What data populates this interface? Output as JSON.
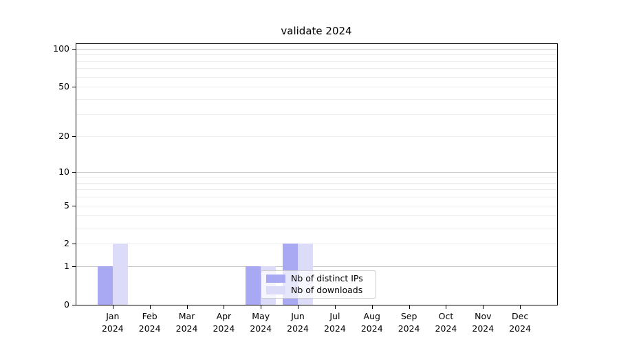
{
  "chart_data": {
    "type": "bar",
    "title": "validate 2024",
    "categories": [
      "Jan",
      "Feb",
      "Mar",
      "Apr",
      "May",
      "Jun",
      "Jul",
      "Aug",
      "Sep",
      "Oct",
      "Nov",
      "Dec"
    ],
    "x_sublabel": "2024",
    "series": [
      {
        "name": "Nb of distinct IPs",
        "key": "distinct-ips",
        "color": "#a9a9f3",
        "values": [
          1,
          0,
          0,
          0,
          1,
          2,
          0,
          0,
          0,
          0,
          0,
          0
        ]
      },
      {
        "name": "Nb of downloads",
        "key": "downloads",
        "color": "#dcdcf8",
        "values": [
          2,
          0,
          0,
          0,
          1,
          2,
          0,
          0,
          0,
          0,
          0,
          0
        ]
      }
    ],
    "xlabel": "",
    "ylabel": "",
    "ylim": [
      0,
      100
    ],
    "yscale": "log1p",
    "yticks": [
      0,
      1,
      2,
      5,
      10,
      20,
      50,
      100
    ],
    "major_gridlines": [
      1,
      10,
      100
    ],
    "minor_gridlines": [
      2,
      3,
      4,
      5,
      6,
      7,
      8,
      9,
      20,
      30,
      40,
      50,
      60,
      70,
      80,
      90
    ],
    "grid": "on",
    "legend": {
      "position": "inside-lower-center",
      "entries": [
        "Nb of distinct IPs",
        "Nb of downloads"
      ]
    }
  },
  "colors": {
    "background": "#ffffff",
    "axis": "#000000",
    "major_grid": "#c6c6c6",
    "minor_grid": "#ededed",
    "legend_border": "#cccccc",
    "text": "#000000"
  }
}
